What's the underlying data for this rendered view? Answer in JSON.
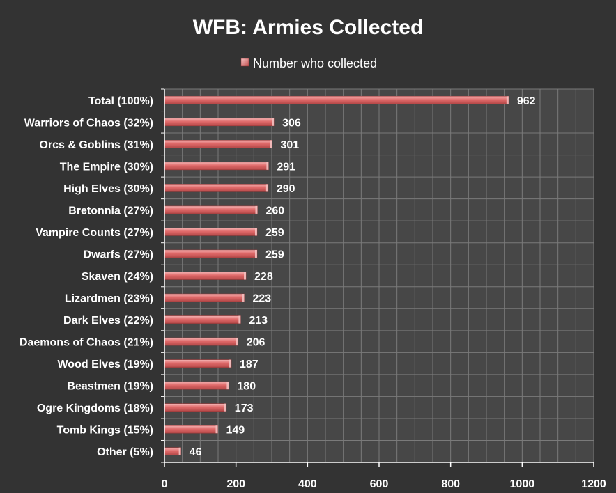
{
  "chart_data": {
    "type": "bar",
    "orientation": "horizontal",
    "title": "WFB: Armies Collected",
    "legend": {
      "position": "top",
      "entries": [
        "Number who collected"
      ]
    },
    "categories": [
      "Total (100%)",
      "Warriors of Chaos (32%)",
      "Orcs & Goblins (31%)",
      "The Empire (30%)",
      "High Elves (30%)",
      "Bretonnia (27%)",
      "Vampire Counts (27%)",
      "Dwarfs (27%)",
      "Skaven (24%)",
      "Lizardmen (23%)",
      "Dark Elves (22%)",
      "Daemons of Chaos (21%)",
      "Wood Elves (19%)",
      "Beastmen (19%)",
      "Ogre Kingdoms (18%)",
      "Tomb Kings (15%)",
      "Other (5%)"
    ],
    "series": [
      {
        "name": "Number who collected",
        "color": "#e57373",
        "values": [
          962,
          306,
          301,
          291,
          290,
          260,
          259,
          259,
          228,
          223,
          213,
          206,
          187,
          180,
          173,
          149,
          46
        ]
      }
    ],
    "xlim": [
      0,
      1200
    ],
    "xticks": [
      "0",
      "200",
      "400",
      "600",
      "800",
      "1000",
      "1200"
    ],
    "grid": true,
    "background": "#333333",
    "plot_background": "#474747",
    "grid_color": "#7a7a7a"
  }
}
